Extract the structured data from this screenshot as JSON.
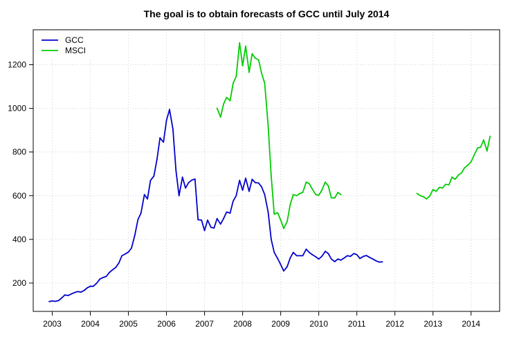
{
  "chart_data": {
    "type": "line",
    "title": "The goal is to obtain forecasts of GCC until July 2014",
    "xlabel": "",
    "ylabel": "",
    "xlim": [
      2002.5,
      2014.75
    ],
    "ylim": [
      70,
      1360
    ],
    "x_ticks": [
      2003,
      2004,
      2005,
      2006,
      2007,
      2008,
      2009,
      2010,
      2011,
      2012,
      2013,
      2014
    ],
    "x_tick_labels": [
      "2003",
      "2004",
      "2005",
      "2006",
      "2007",
      "2008",
      "2009",
      "2010",
      "2011",
      "2012",
      "2013",
      "2014"
    ],
    "y_ticks": [
      200,
      400,
      600,
      800,
      1000,
      1200
    ],
    "y_tick_labels": [
      "200",
      "400",
      "600",
      "800",
      "1000",
      "1200"
    ],
    "grid": true,
    "legend_position": "top-left",
    "series": [
      {
        "name": "GCC",
        "color": "#0000cc",
        "segments": [
          [
            [
              2002.92,
              115
            ],
            [
              2003.0,
              118
            ],
            [
              2003.08,
              116
            ],
            [
              2003.17,
              120
            ],
            [
              2003.25,
              132
            ],
            [
              2003.33,
              145
            ],
            [
              2003.42,
              143
            ],
            [
              2003.5,
              150
            ],
            [
              2003.58,
              156
            ],
            [
              2003.67,
              161
            ],
            [
              2003.75,
              158
            ],
            [
              2003.83,
              165
            ],
            [
              2003.92,
              178
            ],
            [
              2004.0,
              185
            ],
            [
              2004.08,
              185
            ],
            [
              2004.17,
              200
            ],
            [
              2004.25,
              218
            ],
            [
              2004.33,
              225
            ],
            [
              2004.42,
              230
            ],
            [
              2004.5,
              248
            ],
            [
              2004.58,
              260
            ],
            [
              2004.67,
              272
            ],
            [
              2004.75,
              292
            ],
            [
              2004.83,
              325
            ],
            [
              2004.92,
              333
            ],
            [
              2005.0,
              342
            ],
            [
              2005.08,
              360
            ],
            [
              2005.17,
              420
            ],
            [
              2005.25,
              490
            ],
            [
              2005.33,
              520
            ],
            [
              2005.42,
              605
            ],
            [
              2005.5,
              585
            ],
            [
              2005.58,
              670
            ],
            [
              2005.67,
              690
            ],
            [
              2005.75,
              765
            ],
            [
              2005.83,
              865
            ],
            [
              2005.92,
              845
            ],
            [
              2006.0,
              945
            ],
            [
              2006.08,
              995
            ],
            [
              2006.17,
              905
            ],
            [
              2006.25,
              715
            ],
            [
              2006.33,
              600
            ],
            [
              2006.42,
              685
            ],
            [
              2006.5,
              635
            ],
            [
              2006.58,
              660
            ],
            [
              2006.67,
              672
            ],
            [
              2006.75,
              676
            ],
            [
              2006.83,
              490
            ],
            [
              2006.92,
              488
            ],
            [
              2007.0,
              440
            ],
            [
              2007.08,
              488
            ],
            [
              2007.17,
              455
            ],
            [
              2007.25,
              452
            ],
            [
              2007.33,
              495
            ],
            [
              2007.42,
              470
            ],
            [
              2007.5,
              495
            ],
            [
              2007.58,
              525
            ],
            [
              2007.67,
              520
            ],
            [
              2007.75,
              575
            ],
            [
              2007.83,
              600
            ],
            [
              2007.92,
              670
            ],
            [
              2008.0,
              625
            ],
            [
              2008.08,
              680
            ],
            [
              2008.17,
              620
            ],
            [
              2008.25,
              675
            ],
            [
              2008.33,
              660
            ],
            [
              2008.42,
              658
            ],
            [
              2008.5,
              640
            ],
            [
              2008.58,
              605
            ],
            [
              2008.67,
              525
            ],
            [
              2008.75,
              400
            ],
            [
              2008.83,
              340
            ],
            [
              2008.92,
              312
            ],
            [
              2009.0,
              285
            ],
            [
              2009.08,
              255
            ],
            [
              2009.17,
              275
            ],
            [
              2009.25,
              315
            ],
            [
              2009.33,
              340
            ],
            [
              2009.42,
              325
            ],
            [
              2009.5,
              325
            ],
            [
              2009.58,
              325
            ],
            [
              2009.67,
              355
            ],
            [
              2009.75,
              340
            ],
            [
              2009.83,
              330
            ],
            [
              2009.92,
              320
            ],
            [
              2010.0,
              310
            ],
            [
              2010.08,
              322
            ],
            [
              2010.17,
              345
            ],
            [
              2010.25,
              335
            ],
            [
              2010.33,
              310
            ],
            [
              2010.42,
              298
            ],
            [
              2010.5,
              310
            ],
            [
              2010.58,
              305
            ],
            [
              2010.67,
              315
            ],
            [
              2010.75,
              325
            ],
            [
              2010.83,
              322
            ],
            [
              2010.92,
              335
            ],
            [
              2011.0,
              330
            ],
            [
              2011.08,
              312
            ],
            [
              2011.17,
              322
            ],
            [
              2011.25,
              326
            ],
            [
              2011.33,
              318
            ],
            [
              2011.42,
              310
            ],
            [
              2011.5,
              302
            ],
            [
              2011.58,
              296
            ],
            [
              2011.67,
              297
            ]
          ]
        ]
      },
      {
        "name": "MSCI",
        "color": "#00cc00",
        "segments": [
          [
            [
              2007.33,
              1000
            ],
            [
              2007.42,
              960
            ],
            [
              2007.5,
              1020
            ],
            [
              2007.58,
              1050
            ],
            [
              2007.67,
              1035
            ],
            [
              2007.75,
              1115
            ],
            [
              2007.83,
              1145
            ],
            [
              2007.92,
              1300
            ],
            [
              2008.0,
              1195
            ],
            [
              2008.08,
              1285
            ],
            [
              2008.17,
              1165
            ],
            [
              2008.25,
              1250
            ],
            [
              2008.33,
              1230
            ],
            [
              2008.42,
              1222
            ],
            [
              2008.5,
              1160
            ],
            [
              2008.58,
              1115
            ],
            [
              2008.67,
              920
            ],
            [
              2008.75,
              690
            ],
            [
              2008.83,
              515
            ],
            [
              2008.92,
              522
            ],
            [
              2009.0,
              488
            ],
            [
              2009.08,
              450
            ],
            [
              2009.17,
              482
            ],
            [
              2009.25,
              560
            ],
            [
              2009.33,
              605
            ],
            [
              2009.42,
              600
            ],
            [
              2009.5,
              610
            ],
            [
              2009.58,
              615
            ],
            [
              2009.67,
              662
            ],
            [
              2009.75,
              655
            ],
            [
              2009.83,
              630
            ],
            [
              2009.92,
              605
            ],
            [
              2010.0,
              602
            ],
            [
              2010.08,
              625
            ],
            [
              2010.17,
              662
            ],
            [
              2010.25,
              645
            ],
            [
              2010.33,
              590
            ],
            [
              2010.42,
              590
            ],
            [
              2010.5,
              615
            ],
            [
              2010.58,
              605
            ]
          ],
          [
            [
              2012.58,
              610
            ],
            [
              2012.67,
              600
            ],
            [
              2012.75,
              595
            ],
            [
              2012.83,
              585
            ],
            [
              2012.92,
              600
            ],
            [
              2013.0,
              628
            ],
            [
              2013.08,
              620
            ],
            [
              2013.17,
              638
            ],
            [
              2013.25,
              635
            ],
            [
              2013.33,
              652
            ],
            [
              2013.42,
              650
            ],
            [
              2013.5,
              685
            ],
            [
              2013.58,
              675
            ],
            [
              2013.67,
              695
            ],
            [
              2013.75,
              705
            ],
            [
              2013.83,
              728
            ],
            [
              2013.92,
              740
            ],
            [
              2014.0,
              755
            ],
            [
              2014.08,
              785
            ],
            [
              2014.17,
              818
            ],
            [
              2014.25,
              822
            ],
            [
              2014.33,
              855
            ],
            [
              2014.42,
              805
            ],
            [
              2014.5,
              872
            ]
          ]
        ]
      }
    ]
  }
}
